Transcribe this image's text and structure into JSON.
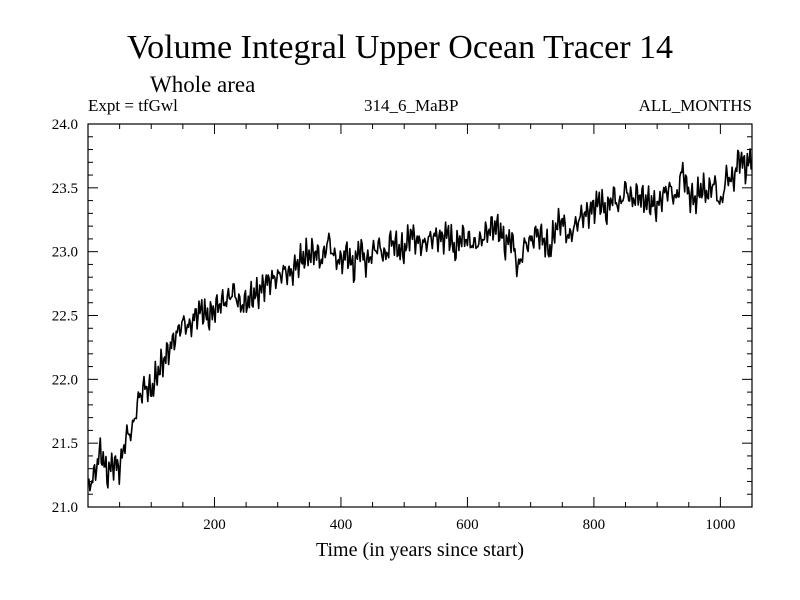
{
  "header": {
    "title": "Volume Integral Upper Ocean Tracer 14",
    "subtitle": "Whole area",
    "experiment": "Expt = tfGwl",
    "run": "314_6_MaBP",
    "months": "ALL_MONTHS"
  },
  "colors": {
    "line": "#000000",
    "background": "#ffffff"
  },
  "chart_data": {
    "type": "line",
    "title": "Volume Integral Upper Ocean Tracer 14",
    "subtitle": "Whole area",
    "xlabel": "Time (in years since start)",
    "ylabel": "",
    "xlim": [
      0,
      1050
    ],
    "ylim": [
      21.0,
      24.0
    ],
    "x_ticks": [
      200,
      400,
      600,
      800,
      1000
    ],
    "y_ticks": [
      "21.0",
      "21.5",
      "22.0",
      "22.5",
      "23.0",
      "23.5",
      "24.0"
    ],
    "series": [
      {
        "name": "tfGwl",
        "x": [
          0,
          10,
          20,
          30,
          40,
          50,
          60,
          70,
          80,
          90,
          100,
          110,
          120,
          130,
          140,
          150,
          160,
          170,
          180,
          190,
          200,
          210,
          220,
          230,
          240,
          250,
          260,
          270,
          280,
          290,
          300,
          310,
          320,
          330,
          340,
          350,
          360,
          370,
          380,
          390,
          400,
          410,
          420,
          430,
          440,
          450,
          460,
          470,
          480,
          490,
          500,
          510,
          520,
          530,
          540,
          550,
          560,
          570,
          580,
          590,
          600,
          610,
          620,
          630,
          640,
          650,
          660,
          670,
          680,
          690,
          700,
          710,
          720,
          730,
          740,
          750,
          760,
          770,
          780,
          790,
          800,
          810,
          820,
          830,
          840,
          850,
          860,
          870,
          880,
          890,
          900,
          910,
          920,
          930,
          940,
          950,
          960,
          970,
          980,
          990,
          1000,
          1010,
          1020,
          1030,
          1040,
          1050
        ],
        "y": [
          21.15,
          21.25,
          21.45,
          21.25,
          21.35,
          21.3,
          21.55,
          21.6,
          21.85,
          21.95,
          21.9,
          22.05,
          22.15,
          22.25,
          22.35,
          22.45,
          22.4,
          22.5,
          22.55,
          22.48,
          22.55,
          22.6,
          22.62,
          22.7,
          22.58,
          22.6,
          22.65,
          22.68,
          22.75,
          22.78,
          22.8,
          22.85,
          22.82,
          22.9,
          22.95,
          22.98,
          23.0,
          22.92,
          23.1,
          22.95,
          22.92,
          23.0,
          22.85,
          23.05,
          22.9,
          23.0,
          23.05,
          22.95,
          23.1,
          23.02,
          23.0,
          23.15,
          23.08,
          23.05,
          23.1,
          23.12,
          23.1,
          23.15,
          23.0,
          23.12,
          23.1,
          23.05,
          23.08,
          23.15,
          23.2,
          23.18,
          23.05,
          23.12,
          22.85,
          23.05,
          23.08,
          23.15,
          23.1,
          23.0,
          23.2,
          23.25,
          23.1,
          23.2,
          23.28,
          23.3,
          23.35,
          23.4,
          23.3,
          23.45,
          23.35,
          23.5,
          23.4,
          23.45,
          23.4,
          23.38,
          23.35,
          23.45,
          23.5,
          23.4,
          23.65,
          23.45,
          23.4,
          23.5,
          23.45,
          23.55,
          23.35,
          23.6,
          23.55,
          23.75,
          23.65,
          23.75
        ]
      }
    ]
  }
}
